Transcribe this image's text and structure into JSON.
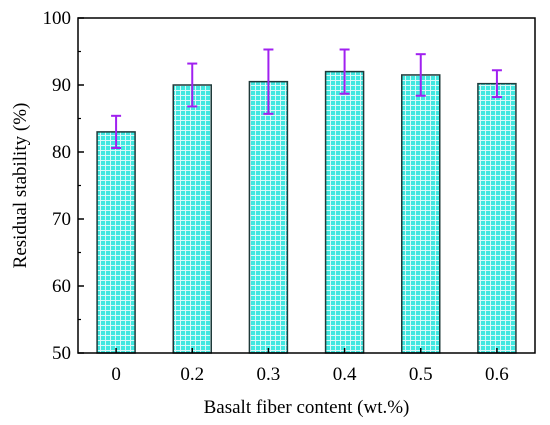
{
  "chart_data": {
    "type": "bar",
    "xlabel": "Basalt fiber content (wt.%)",
    "ylabel": "Residual stability (%)",
    "categories": [
      "0",
      "0.2",
      "0.3",
      "0.4",
      "0.5",
      "0.6"
    ],
    "values": [
      83.0,
      90.0,
      90.5,
      92.0,
      91.5,
      90.2
    ],
    "error_low": [
      2.4,
      3.2,
      4.8,
      3.3,
      3.1,
      2.0
    ],
    "error_high": [
      2.4,
      3.2,
      4.8,
      3.3,
      3.1,
      2.0
    ],
    "ylim": [
      50,
      100
    ],
    "yticks": [
      "50",
      "60",
      "70",
      "80",
      "90",
      "100"
    ],
    "grid": false,
    "legend": "none",
    "colors": {
      "bar_fill": "#40e8e0",
      "bar_hatch": "#d8f8f8",
      "bar_edge": "#1f3a3a",
      "error_bar": "#a020f0",
      "axis": "#000000"
    }
  }
}
